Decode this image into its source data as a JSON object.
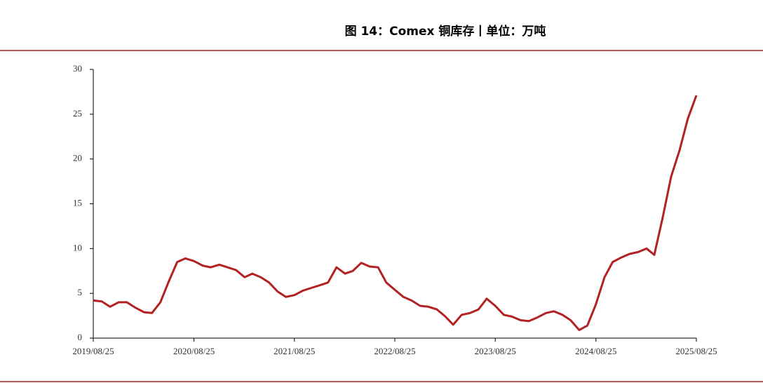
{
  "chart_data": {
    "type": "line",
    "title": "图 14：Comex 铜库存丨单位：万吨",
    "x": [
      "2019/08/25",
      "2019/09/25",
      "2019/10/25",
      "2019/11/25",
      "2019/12/25",
      "2020/01/25",
      "2020/02/25",
      "2020/03/25",
      "2020/04/25",
      "2020/05/25",
      "2020/06/25",
      "2020/07/25",
      "2020/08/25",
      "2020/09/25",
      "2020/10/25",
      "2020/11/25",
      "2020/12/25",
      "2021/01/25",
      "2021/02/25",
      "2021/03/25",
      "2021/04/25",
      "2021/05/25",
      "2021/06/25",
      "2021/07/25",
      "2021/08/25",
      "2021/09/25",
      "2021/10/25",
      "2021/11/25",
      "2021/12/25",
      "2022/01/25",
      "2022/02/25",
      "2022/03/25",
      "2022/04/25",
      "2022/05/25",
      "2022/06/25",
      "2022/07/25",
      "2022/08/25",
      "2022/09/25",
      "2022/10/25",
      "2022/11/25",
      "2022/12/25",
      "2023/01/25",
      "2023/02/25",
      "2023/03/25",
      "2023/04/25",
      "2023/05/25",
      "2023/06/25",
      "2023/07/25",
      "2023/08/25",
      "2023/09/25",
      "2023/10/25",
      "2023/11/25",
      "2023/12/25",
      "2024/01/25",
      "2024/02/25",
      "2024/03/25",
      "2024/04/25",
      "2024/05/25",
      "2024/06/25",
      "2024/07/25",
      "2024/08/25",
      "2024/09/25",
      "2024/10/25",
      "2024/11/25",
      "2024/12/25",
      "2025/01/25",
      "2025/02/25",
      "2025/03/25",
      "2025/04/25",
      "2025/05/25",
      "2025/06/25",
      "2025/07/25",
      "2025/08/25"
    ],
    "series": [
      {
        "color": "#b22222",
        "values": [
          4.2,
          4.1,
          3.5,
          4.0,
          4.0,
          3.4,
          2.9,
          2.8,
          4.0,
          6.3,
          8.5,
          8.9,
          8.6,
          8.1,
          7.9,
          8.2,
          7.9,
          7.6,
          6.8,
          7.2,
          6.8,
          6.2,
          5.2,
          4.6,
          4.8,
          5.3,
          5.6,
          5.9,
          6.2,
          7.9,
          7.2,
          7.5,
          8.4,
          8.0,
          7.9,
          6.2,
          5.4,
          4.6,
          4.2,
          3.6,
          3.5,
          3.2,
          2.4,
          1.5,
          2.6,
          2.8,
          3.2,
          4.4,
          3.6,
          2.6,
          2.4,
          2.0,
          1.9,
          2.3,
          2.8,
          3.0,
          2.6,
          2.0,
          0.9,
          1.4,
          3.8,
          6.8,
          8.5,
          9.0,
          9.4,
          9.6,
          10.0,
          9.3,
          13.5,
          18.0,
          21.0,
          24.5,
          27.1
        ]
      }
    ],
    "xlim": [
      "2019/08/25",
      "2025/08/25"
    ],
    "xticks": [
      "2019/08/25",
      "2020/08/25",
      "2021/08/25",
      "2022/08/25",
      "2023/08/25",
      "2024/08/25",
      "2025/08/25"
    ],
    "ylim": [
      0,
      30
    ],
    "yticks": [
      0,
      5,
      10,
      15,
      20,
      25,
      30
    ],
    "grid": false
  }
}
